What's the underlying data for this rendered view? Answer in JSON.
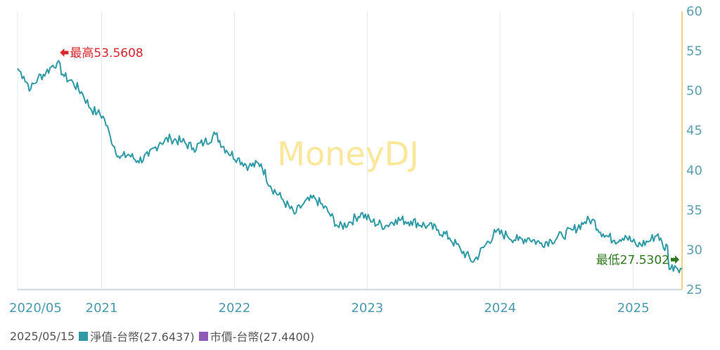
{
  "colors": {
    "nav_line": "#2e9aa6",
    "market_price": "#8e5bb5",
    "grid": "#dcebf0",
    "right_axis": "#f2d27a",
    "tick_text": "#4a9ab0",
    "high": "#d9262c",
    "low": "#2d7a1f",
    "watermark": "#fbe79a"
  },
  "watermark": "MoneyDJ",
  "chart_data": {
    "type": "line",
    "ylim": [
      25,
      60
    ],
    "y_ticks": [
      25,
      30,
      35,
      40,
      45,
      50,
      55,
      60
    ],
    "x_ticks": [
      "2020/05",
      "2021",
      "2022",
      "2023",
      "2024",
      "2025"
    ],
    "x_tick_dates": [
      "2020-05-15",
      "2021-01-01",
      "2022-01-01",
      "2023-01-01",
      "2024-01-01",
      "2025-01-01"
    ],
    "x_range": [
      "2020-05-15",
      "2025-05-15"
    ],
    "series": [
      {
        "name": "淨值-台幣",
        "points": [
          [
            "2020-05-15",
            52.8
          ],
          [
            "2020-06-01",
            51.8
          ],
          [
            "2020-06-20",
            50.2
          ],
          [
            "2020-07-10",
            51.6
          ],
          [
            "2020-08-01",
            52.3
          ],
          [
            "2020-08-20",
            53.2
          ],
          [
            "2020-09-01",
            53.56
          ],
          [
            "2020-09-20",
            51.8
          ],
          [
            "2020-10-15",
            51.0
          ],
          [
            "2020-11-10",
            49.6
          ],
          [
            "2020-12-01",
            47.8
          ],
          [
            "2020-12-20",
            47.2
          ],
          [
            "2021-01-05",
            46.8
          ],
          [
            "2021-01-25",
            44.2
          ],
          [
            "2021-02-20",
            41.5
          ],
          [
            "2021-03-15",
            42.0
          ],
          [
            "2021-04-10",
            41.2
          ],
          [
            "2021-05-10",
            41.8
          ],
          [
            "2021-06-10",
            43.5
          ],
          [
            "2021-07-10",
            44.0
          ],
          [
            "2021-08-10",
            43.6
          ],
          [
            "2021-09-10",
            42.8
          ],
          [
            "2021-10-10",
            43.5
          ],
          [
            "2021-11-10",
            44.5
          ],
          [
            "2021-12-10",
            42.5
          ],
          [
            "2022-01-10",
            41.5
          ],
          [
            "2022-02-10",
            40.5
          ],
          [
            "2022-03-15",
            40.8
          ],
          [
            "2022-04-10",
            38.0
          ],
          [
            "2022-05-10",
            36.5
          ],
          [
            "2022-06-15",
            34.5
          ],
          [
            "2022-07-10",
            35.8
          ],
          [
            "2022-08-10",
            36.5
          ],
          [
            "2022-09-15",
            34.8
          ],
          [
            "2022-10-15",
            32.8
          ],
          [
            "2022-11-15",
            33.5
          ],
          [
            "2022-12-15",
            34.6
          ],
          [
            "2023-01-15",
            33.5
          ],
          [
            "2023-02-20",
            33.0
          ],
          [
            "2023-03-20",
            33.8
          ],
          [
            "2023-05-01",
            33.6
          ],
          [
            "2023-06-15",
            33.0
          ],
          [
            "2023-07-15",
            32.5
          ],
          [
            "2023-08-15",
            31.5
          ],
          [
            "2023-09-15",
            30.0
          ],
          [
            "2023-10-20",
            28.5
          ],
          [
            "2023-11-20",
            30.5
          ],
          [
            "2023-12-20",
            32.2
          ],
          [
            "2024-01-20",
            31.8
          ],
          [
            "2024-02-20",
            31.2
          ],
          [
            "2024-03-20",
            31.5
          ],
          [
            "2024-04-20",
            30.8
          ],
          [
            "2024-05-20",
            31.2
          ],
          [
            "2024-06-20",
            31.8
          ],
          [
            "2024-07-20",
            32.5
          ],
          [
            "2024-08-20",
            33.5
          ],
          [
            "2024-09-10",
            33.8
          ],
          [
            "2024-10-10",
            32.0
          ],
          [
            "2024-11-10",
            31.2
          ],
          [
            "2024-12-10",
            31.8
          ],
          [
            "2025-01-10",
            30.5
          ],
          [
            "2025-02-10",
            31.0
          ],
          [
            "2025-03-10",
            32.0
          ],
          [
            "2025-03-25",
            30.2
          ],
          [
            "2025-04-05",
            30.5
          ],
          [
            "2025-04-10",
            27.53
          ],
          [
            "2025-04-25",
            28.0
          ],
          [
            "2025-05-15",
            27.64
          ]
        ]
      }
    ],
    "annotations": {
      "high": {
        "label": "最高53.5608",
        "date": "2020-09-01",
        "value": 53.5608
      },
      "low": {
        "label": "最低27.5302",
        "date": "2025-04-10",
        "value": 27.5302
      }
    }
  },
  "legend": {
    "date": "2025/05/15",
    "items": [
      {
        "label": "淨值-台幣(27.6437)",
        "color": "#2e9aa6"
      },
      {
        "label": "市價-台幣(27.4400)",
        "color": "#8e5bb5"
      }
    ]
  }
}
